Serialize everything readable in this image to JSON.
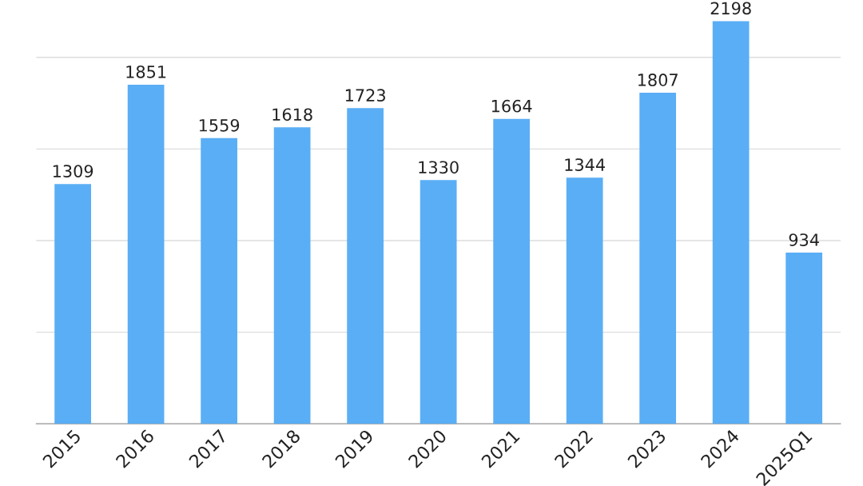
{
  "chart_data": {
    "type": "bar",
    "categories": [
      "2015",
      "2016",
      "2017",
      "2018",
      "2019",
      "2020",
      "2021",
      "2022",
      "2023",
      "2024",
      "2025Q1"
    ],
    "values": [
      1309,
      1851,
      1559,
      1618,
      1723,
      1330,
      1664,
      1344,
      1807,
      2198,
      934
    ],
    "color": "#5aaef5",
    "data_labels": true,
    "yticks": [
      {
        "value": 0,
        "label": null
      },
      {
        "value": 500,
        "label": null
      },
      {
        "value": 1000,
        "label": null
      },
      {
        "value": 1500,
        "label": null
      },
      {
        "value": 2000,
        "label": null
      }
    ],
    "tick_labels": "x",
    "grid": "y",
    "legend": false
  }
}
